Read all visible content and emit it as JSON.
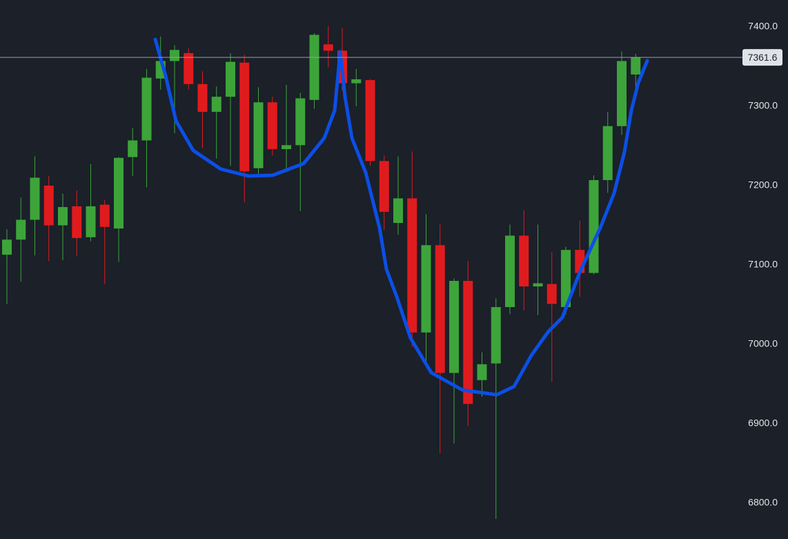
{
  "chart_data": {
    "type": "candlestick",
    "up_color": "#3da43a",
    "down_color": "#e01b1e",
    "open": [
      7113,
      7132,
      7157,
      7200,
      7150,
      7174,
      7135,
      7176,
      7146,
      7236,
      7257,
      7335,
      7357,
      7367,
      7328,
      7293,
      7312,
      7355,
      7222,
      7305,
      7246,
      7251,
      7308,
      7378,
      7370,
      7329,
      7333,
      7231,
      7153,
      7184,
      7015,
      7125,
      6964,
      7080,
      6955,
      6976,
      7047,
      7137,
      7073,
      7076,
      7047,
      7119,
      7090,
      7207,
      7275,
      7340
    ],
    "high": [
      7145,
      7185,
      7237,
      7212,
      7190,
      7194,
      7227,
      7182,
      7236,
      7273,
      7347,
      7388,
      7377,
      7373,
      7344,
      7325,
      7367,
      7365,
      7324,
      7312,
      7327,
      7317,
      7392,
      7401,
      7399,
      7347,
      7334,
      7238,
      7237,
      7243,
      7164,
      7151,
      7083,
      7105,
      6990,
      7058,
      7151,
      7169,
      7151,
      7116,
      7123,
      7156,
      7213,
      7293,
      7369,
      7366
    ],
    "low": [
      7051,
      7079,
      7112,
      7105,
      7106,
      7111,
      7130,
      7076,
      7104,
      7212,
      7198,
      7321,
      7266,
      7321,
      7247,
      7234,
      7225,
      7179,
      7214,
      7238,
      7217,
      7168,
      7297,
      7349,
      7320,
      7300,
      7225,
      7144,
      7138,
      6997,
      6973,
      6863,
      6875,
      6897,
      6934,
      6780,
      7038,
      7043,
      7037,
      6953,
      7038,
      7060,
      7088,
      7191,
      7264,
      7314
    ],
    "close": [
      7132,
      7157,
      7210,
      7150,
      7173,
      7134,
      7174,
      7148,
      7235,
      7257,
      7336,
      7357,
      7371,
      7328,
      7293,
      7312,
      7356,
      7218,
      7305,
      7246,
      7251,
      7310,
      7390,
      7370,
      7329,
      7334,
      7231,
      7167,
      7184,
      7015,
      7125,
      6964,
      7080,
      6925,
      6975,
      7047,
      7137,
      7073,
      7077,
      7051,
      7119,
      7090,
      7207,
      7275,
      7357,
      7361.6
    ],
    "last_price": 7361.6,
    "ylim": [
      6754.8,
      7433.9
    ],
    "yticks": [
      {
        "value": 6800,
        "label": "6800.0"
      },
      {
        "value": 6900,
        "label": "6900.0"
      },
      {
        "value": 7000,
        "label": "7000.0"
      },
      {
        "value": 7100,
        "label": "7100.0"
      },
      {
        "value": 7200,
        "label": "7200.0"
      },
      {
        "value": 7300,
        "label": "7300.0"
      },
      {
        "value": 7400,
        "label": "7400.0"
      }
    ]
  }
}
